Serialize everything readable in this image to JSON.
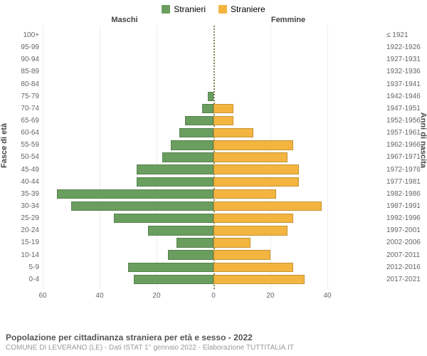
{
  "legend": {
    "male": {
      "label": "Stranieri",
      "color": "#6a9e5f"
    },
    "female": {
      "label": "Straniere",
      "color": "#f3b53f"
    }
  },
  "column_headers": {
    "left": "Maschi",
    "right": "Femmine"
  },
  "axis_titles": {
    "left": "Fasce di età",
    "right": "Anni di nascita"
  },
  "footer": {
    "title": "Popolazione per cittadinanza straniera per età e sesso - 2022",
    "subtitle": "COMUNE DI LEVERANO (LE) - Dati ISTAT 1° gennaio 2022 - Elaborazione TUTTITALIA.IT"
  },
  "chart": {
    "type": "population-pyramid",
    "x_max": 60,
    "x_ticks": [
      60,
      40,
      20,
      0,
      20,
      40
    ],
    "background_color": "#ffffff",
    "grid_color": "#eeeeee",
    "center_axis_color": "#888855",
    "age_label_color": "#666666",
    "bar_border_color": "rgba(0,0,0,0.18)",
    "male_color": "#6a9e5f",
    "female_color": "#f3b53f",
    "rows": [
      {
        "age": "100+",
        "years": "≤ 1921",
        "m": 0,
        "f": 0
      },
      {
        "age": "95-99",
        "years": "1922-1926",
        "m": 0,
        "f": 0
      },
      {
        "age": "90-94",
        "years": "1927-1931",
        "m": 0,
        "f": 0
      },
      {
        "age": "85-89",
        "years": "1932-1936",
        "m": 0,
        "f": 0
      },
      {
        "age": "80-84",
        "years": "1937-1941",
        "m": 0,
        "f": 0
      },
      {
        "age": "75-79",
        "years": "1942-1946",
        "m": 2,
        "f": 0
      },
      {
        "age": "70-74",
        "years": "1947-1951",
        "m": 4,
        "f": 7
      },
      {
        "age": "65-69",
        "years": "1952-1956",
        "m": 10,
        "f": 7
      },
      {
        "age": "60-64",
        "years": "1957-1961",
        "m": 12,
        "f": 14
      },
      {
        "age": "55-59",
        "years": "1962-1966",
        "m": 15,
        "f": 28
      },
      {
        "age": "50-54",
        "years": "1967-1971",
        "m": 18,
        "f": 26
      },
      {
        "age": "45-49",
        "years": "1972-1976",
        "m": 27,
        "f": 30
      },
      {
        "age": "40-44",
        "years": "1977-1981",
        "m": 27,
        "f": 30
      },
      {
        "age": "35-39",
        "years": "1982-1986",
        "m": 55,
        "f": 22
      },
      {
        "age": "30-34",
        "years": "1987-1991",
        "m": 50,
        "f": 38
      },
      {
        "age": "25-29",
        "years": "1992-1996",
        "m": 35,
        "f": 28
      },
      {
        "age": "20-24",
        "years": "1997-2001",
        "m": 23,
        "f": 26
      },
      {
        "age": "15-19",
        "years": "2002-2006",
        "m": 13,
        "f": 13
      },
      {
        "age": "10-14",
        "years": "2007-2011",
        "m": 16,
        "f": 20
      },
      {
        "age": "5-9",
        "years": "2012-2016",
        "m": 30,
        "f": 28
      },
      {
        "age": "0-4",
        "years": "2017-2021",
        "m": 28,
        "f": 32
      }
    ]
  }
}
